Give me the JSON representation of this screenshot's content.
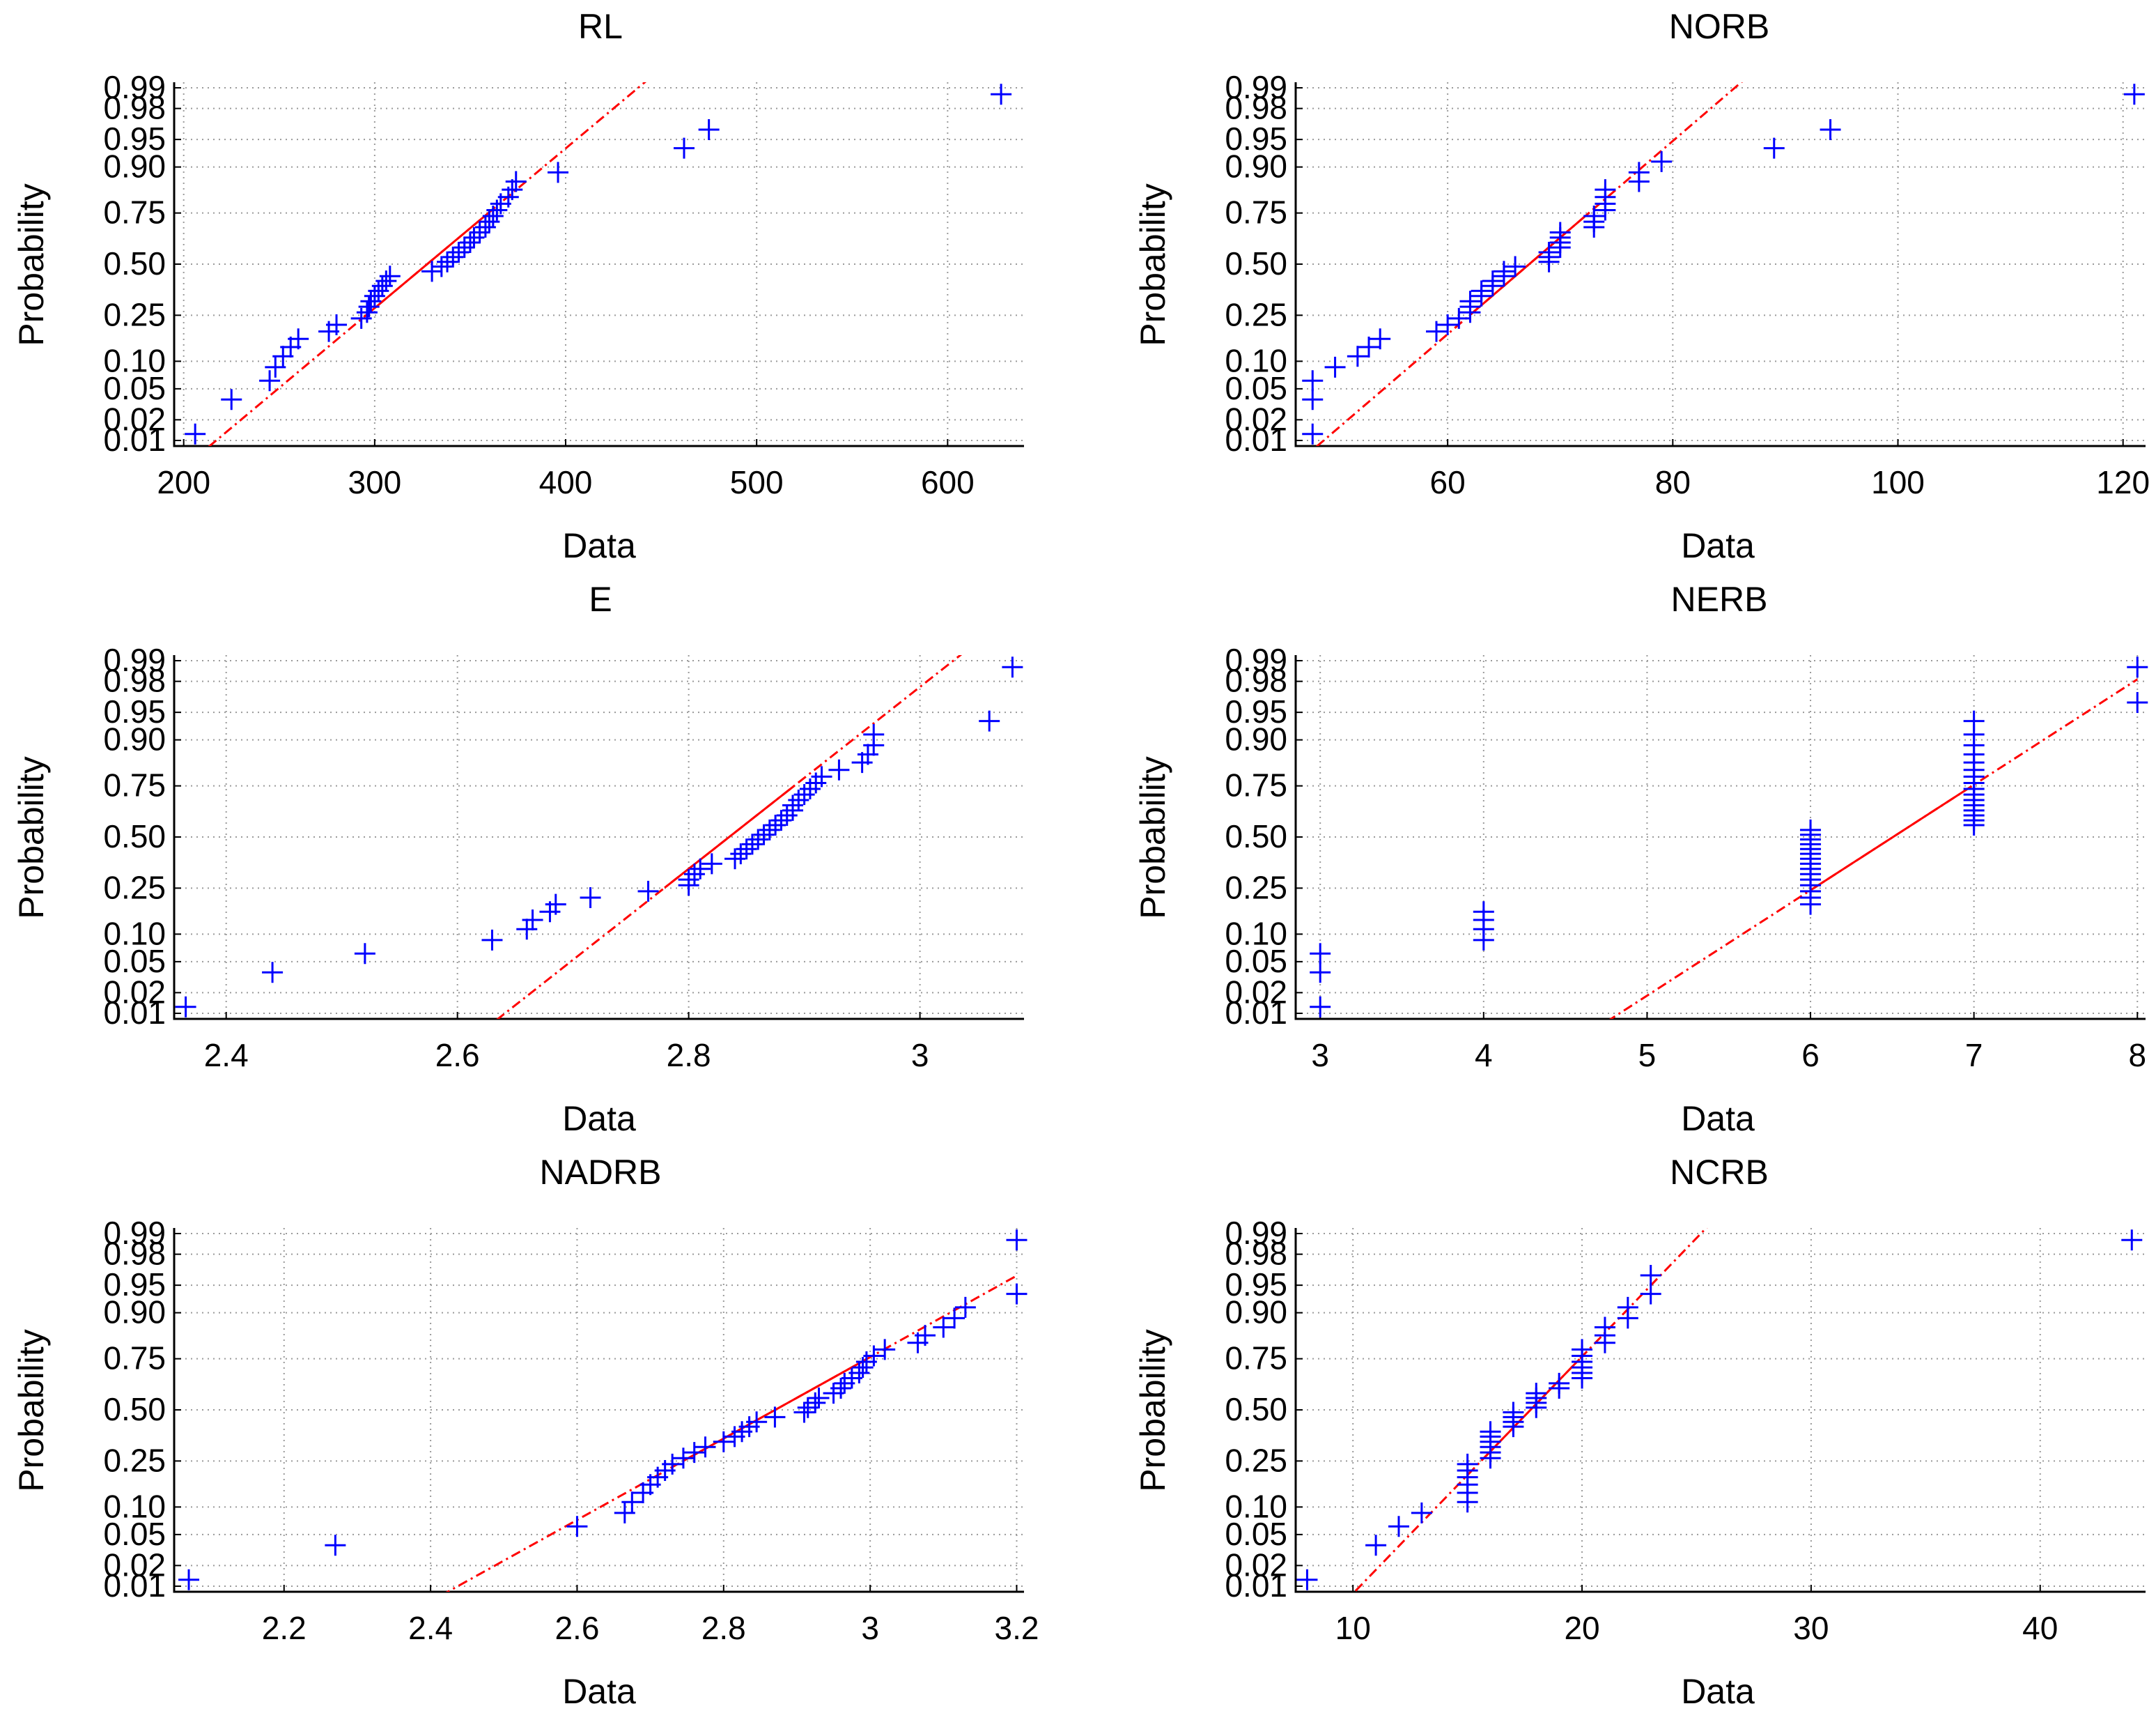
{
  "figure": {
    "colors": {
      "marker": "#0000ff",
      "fit": "#ff0000",
      "grid": "#9a9a9a",
      "axis": "#000000"
    }
  },
  "chart_data": [
    {
      "type": "scatter",
      "subtype": "normal-probability-plot",
      "title": "RL",
      "xlabel": "Data",
      "ylabel": "Probability",
      "xlim": [
        195,
        640
      ],
      "xticks": [
        200,
        300,
        400,
        500,
        600
      ],
      "yticks": [
        0.01,
        0.02,
        0.05,
        0.1,
        0.25,
        0.5,
        0.75,
        0.9,
        0.95,
        0.98,
        0.99
      ],
      "ytick_labels": [
        "0.01",
        "0.02",
        "0.05",
        "0.10",
        "0.25",
        "0.50",
        "0.75",
        "0.90",
        "0.95",
        "0.98",
        "0.99"
      ],
      "fit_line": {
        "x": [
          205,
          450
        ],
        "z": [
          -2.58,
          2.58
        ],
        "solid_z": [
          -0.67,
          0.67
        ]
      },
      "points": [
        [
          206,
          0.0125
        ],
        [
          225,
          0.037
        ],
        [
          245,
          0.062
        ],
        [
          248,
          0.087
        ],
        [
          252,
          0.112
        ],
        [
          256,
          0.137
        ],
        [
          260,
          0.162
        ],
        [
          276,
          0.187
        ],
        [
          280,
          0.212
        ],
        [
          293,
          0.237
        ],
        [
          296,
          0.262
        ],
        [
          297,
          0.287
        ],
        [
          298,
          0.312
        ],
        [
          300,
          0.337
        ],
        [
          302,
          0.362
        ],
        [
          304,
          0.387
        ],
        [
          306,
          0.412
        ],
        [
          308,
          0.437
        ],
        [
          330,
          0.462
        ],
        [
          335,
          0.487
        ],
        [
          338,
          0.512
        ],
        [
          341,
          0.537
        ],
        [
          344,
          0.562
        ],
        [
          347,
          0.587
        ],
        [
          350,
          0.612
        ],
        [
          352,
          0.637
        ],
        [
          355,
          0.662
        ],
        [
          358,
          0.687
        ],
        [
          360,
          0.712
        ],
        [
          362,
          0.737
        ],
        [
          364,
          0.762
        ],
        [
          366,
          0.787
        ],
        [
          370,
          0.812
        ],
        [
          372,
          0.837
        ],
        [
          374,
          0.862
        ],
        [
          396,
          0.887
        ],
        [
          462,
          0.937
        ],
        [
          475,
          0.962
        ],
        [
          628,
          0.9875
        ]
      ]
    },
    {
      "type": "scatter",
      "subtype": "normal-probability-plot",
      "title": "NORB",
      "xlabel": "Data",
      "ylabel": "Probability",
      "xlim": [
        46.5,
        122
      ],
      "xticks": [
        60,
        80,
        100,
        120
      ],
      "yticks": [
        0.01,
        0.02,
        0.05,
        0.1,
        0.25,
        0.5,
        0.75,
        0.9,
        0.95,
        0.98,
        0.99
      ],
      "ytick_labels": [
        "0.01",
        "0.02",
        "0.05",
        "0.10",
        "0.25",
        "0.50",
        "0.75",
        "0.90",
        "0.95",
        "0.98",
        "0.99"
      ],
      "fit_line": {
        "x": [
          47,
          87.5
        ],
        "z": [
          -2.58,
          2.58
        ],
        "solid_z": [
          -0.67,
          0.67
        ]
      },
      "points": [
        [
          48,
          0.0125
        ],
        [
          48,
          0.037
        ],
        [
          48,
          0.062
        ],
        [
          50,
          0.087
        ],
        [
          52,
          0.112
        ],
        [
          53,
          0.137
        ],
        [
          54,
          0.162
        ],
        [
          59,
          0.187
        ],
        [
          60,
          0.212
        ],
        [
          61,
          0.237
        ],
        [
          62,
          0.262
        ],
        [
          62,
          0.287
        ],
        [
          62,
          0.312
        ],
        [
          63,
          0.337
        ],
        [
          63,
          0.362
        ],
        [
          64,
          0.387
        ],
        [
          64,
          0.412
        ],
        [
          65,
          0.437
        ],
        [
          65,
          0.462
        ],
        [
          66,
          0.487
        ],
        [
          69,
          0.512
        ],
        [
          69,
          0.537
        ],
        [
          69,
          0.562
        ],
        [
          70,
          0.587
        ],
        [
          70,
          0.612
        ],
        [
          70,
          0.637
        ],
        [
          70,
          0.662
        ],
        [
          73,
          0.687
        ],
        [
          73,
          0.712
        ],
        [
          73,
          0.737
        ],
        [
          74,
          0.762
        ],
        [
          74,
          0.787
        ],
        [
          74,
          0.812
        ],
        [
          74,
          0.837
        ],
        [
          77,
          0.862
        ],
        [
          77,
          0.887
        ],
        [
          79,
          0.912
        ],
        [
          89,
          0.937
        ],
        [
          94,
          0.962
        ],
        [
          121,
          0.9875
        ]
      ]
    },
    {
      "type": "scatter",
      "subtype": "normal-probability-plot",
      "title": "E",
      "xlabel": "Data",
      "ylabel": "Probability",
      "xlim": [
        2.355,
        3.09
      ],
      "xticks": [
        2.4,
        2.6,
        2.8,
        3.0
      ],
      "xtick_labels": [
        "2.4",
        "2.6",
        "2.8",
        "3"
      ],
      "yticks": [
        0.01,
        0.02,
        0.05,
        0.1,
        0.25,
        0.5,
        0.75,
        0.9,
        0.95,
        0.98,
        0.99
      ],
      "ytick_labels": [
        "0.01",
        "0.02",
        "0.05",
        "0.10",
        "0.25",
        "0.50",
        "0.75",
        "0.90",
        "0.95",
        "0.98",
        "0.99"
      ],
      "fit_line": {
        "x": [
          2.62,
          3.05
        ],
        "z": [
          -2.58,
          2.58
        ],
        "solid_z": [
          -0.67,
          0.67
        ]
      },
      "points": [
        [
          2.365,
          0.0125
        ],
        [
          2.44,
          0.037
        ],
        [
          2.52,
          0.062
        ],
        [
          2.63,
          0.087
        ],
        [
          2.66,
          0.112
        ],
        [
          2.665,
          0.137
        ],
        [
          2.68,
          0.162
        ],
        [
          2.685,
          0.187
        ],
        [
          2.715,
          0.212
        ],
        [
          2.765,
          0.237
        ],
        [
          2.8,
          0.262
        ],
        [
          2.8,
          0.287
        ],
        [
          2.805,
          0.312
        ],
        [
          2.81,
          0.337
        ],
        [
          2.82,
          0.362
        ],
        [
          2.84,
          0.387
        ],
        [
          2.845,
          0.412
        ],
        [
          2.85,
          0.437
        ],
        [
          2.855,
          0.462
        ],
        [
          2.86,
          0.487
        ],
        [
          2.865,
          0.512
        ],
        [
          2.87,
          0.537
        ],
        [
          2.875,
          0.562
        ],
        [
          2.88,
          0.587
        ],
        [
          2.885,
          0.612
        ],
        [
          2.89,
          0.637
        ],
        [
          2.89,
          0.662
        ],
        [
          2.895,
          0.687
        ],
        [
          2.9,
          0.712
        ],
        [
          2.905,
          0.737
        ],
        [
          2.91,
          0.762
        ],
        [
          2.915,
          0.787
        ],
        [
          2.93,
          0.812
        ],
        [
          2.95,
          0.837
        ],
        [
          2.955,
          0.862
        ],
        [
          2.96,
          0.887
        ],
        [
          2.96,
          0.912
        ],
        [
          3.06,
          0.937
        ],
        [
          3.08,
          0.9875
        ]
      ]
    },
    {
      "type": "scatter",
      "subtype": "normal-probability-plot",
      "title": "NERB",
      "xlabel": "Data",
      "ylabel": "Probability",
      "xlim": [
        2.85,
        8.05
      ],
      "xticks": [
        3,
        4,
        5,
        6,
        7,
        8
      ],
      "yticks": [
        0.01,
        0.02,
        0.05,
        0.1,
        0.25,
        0.5,
        0.75,
        0.9,
        0.95,
        0.98,
        0.99
      ],
      "ytick_labels": [
        "0.01",
        "0.02",
        "0.05",
        "0.10",
        "0.25",
        "0.50",
        "0.75",
        "0.90",
        "0.95",
        "0.98",
        "0.99"
      ],
      "fit_line": {
        "x": [
          4.65,
          8.0
        ],
        "z": [
          -2.58,
          2.08
        ],
        "solid_z": [
          -0.67,
          0.67
        ]
      },
      "points": [
        [
          3,
          0.0125
        ],
        [
          3,
          0.037
        ],
        [
          3,
          0.062
        ],
        [
          4,
          0.087
        ],
        [
          4,
          0.112
        ],
        [
          4,
          0.137
        ],
        [
          4,
          0.162
        ],
        [
          6,
          0.187
        ],
        [
          6,
          0.212
        ],
        [
          6,
          0.237
        ],
        [
          6,
          0.262
        ],
        [
          6,
          0.287
        ],
        [
          6,
          0.312
        ],
        [
          6,
          0.337
        ],
        [
          6,
          0.362
        ],
        [
          6,
          0.387
        ],
        [
          6,
          0.412
        ],
        [
          6,
          0.437
        ],
        [
          6,
          0.462
        ],
        [
          6,
          0.487
        ],
        [
          6,
          0.512
        ],
        [
          6,
          0.537
        ],
        [
          7,
          0.562
        ],
        [
          7,
          0.587
        ],
        [
          7,
          0.612
        ],
        [
          7,
          0.637
        ],
        [
          7,
          0.662
        ],
        [
          7,
          0.687
        ],
        [
          7,
          0.712
        ],
        [
          7,
          0.737
        ],
        [
          7,
          0.762
        ],
        [
          7,
          0.787
        ],
        [
          7,
          0.812
        ],
        [
          7,
          0.837
        ],
        [
          7,
          0.862
        ],
        [
          7,
          0.887
        ],
        [
          7,
          0.912
        ],
        [
          7,
          0.937
        ],
        [
          8,
          0.962
        ],
        [
          8,
          0.9875
        ]
      ]
    },
    {
      "type": "scatter",
      "subtype": "normal-probability-plot",
      "title": "NADRB",
      "xlabel": "Data",
      "ylabel": "Probability",
      "xlim": [
        2.05,
        3.21
      ],
      "xticks": [
        2.2,
        2.4,
        2.6,
        2.8,
        3.0,
        3.2
      ],
      "xtick_labels": [
        "2.2",
        "2.4",
        "2.6",
        "2.8",
        "3",
        "3.2"
      ],
      "yticks": [
        0.01,
        0.02,
        0.05,
        0.1,
        0.25,
        0.5,
        0.75,
        0.9,
        0.95,
        0.98,
        0.99
      ],
      "ytick_labels": [
        "0.01",
        "0.02",
        "0.05",
        "0.10",
        "0.25",
        "0.50",
        "0.75",
        "0.90",
        "0.95",
        "0.98",
        "0.99"
      ],
      "fit_line": {
        "x": [
          2.39,
          3.2
        ],
        "z": [
          -2.58,
          1.77
        ],
        "solid_z": [
          -0.67,
          0.67
        ]
      },
      "points": [
        [
          2.07,
          0.0125
        ],
        [
          2.27,
          0.037
        ],
        [
          2.6,
          0.062
        ],
        [
          2.665,
          0.087
        ],
        [
          2.675,
          0.112
        ],
        [
          2.69,
          0.137
        ],
        [
          2.7,
          0.162
        ],
        [
          2.71,
          0.187
        ],
        [
          2.72,
          0.212
        ],
        [
          2.73,
          0.237
        ],
        [
          2.745,
          0.262
        ],
        [
          2.76,
          0.287
        ],
        [
          2.775,
          0.312
        ],
        [
          2.8,
          0.337
        ],
        [
          2.815,
          0.362
        ],
        [
          2.825,
          0.387
        ],
        [
          2.835,
          0.412
        ],
        [
          2.845,
          0.437
        ],
        [
          2.87,
          0.462
        ],
        [
          2.91,
          0.487
        ],
        [
          2.915,
          0.512
        ],
        [
          2.925,
          0.537
        ],
        [
          2.93,
          0.562
        ],
        [
          2.95,
          0.587
        ],
        [
          2.96,
          0.612
        ],
        [
          2.965,
          0.637
        ],
        [
          2.975,
          0.662
        ],
        [
          2.985,
          0.687
        ],
        [
          2.99,
          0.712
        ],
        [
          2.995,
          0.737
        ],
        [
          3.005,
          0.762
        ],
        [
          3.02,
          0.787
        ],
        [
          3.065,
          0.812
        ],
        [
          3.075,
          0.837
        ],
        [
          3.1,
          0.862
        ],
        [
          3.115,
          0.887
        ],
        [
          3.13,
          0.912
        ],
        [
          3.2,
          0.937
        ],
        [
          3.2,
          0.9875
        ]
      ]
    },
    {
      "type": "scatter",
      "subtype": "normal-probability-plot",
      "title": "NCRB",
      "xlabel": "Data",
      "ylabel": "Probability",
      "xlim": [
        7.5,
        44.6
      ],
      "xticks": [
        10,
        20,
        30,
        40
      ],
      "yticks": [
        0.01,
        0.02,
        0.05,
        0.1,
        0.25,
        0.5,
        0.75,
        0.9,
        0.95,
        0.98,
        0.99
      ],
      "ytick_labels": [
        "0.01",
        "0.02",
        "0.05",
        "0.10",
        "0.25",
        "0.50",
        "0.75",
        "0.90",
        "0.95",
        "0.98",
        "0.99"
      ],
      "fit_line": {
        "x": [
          9.5,
          26.0
        ],
        "z": [
          -2.58,
          2.58
        ],
        "solid_z": [
          -0.67,
          0.67
        ]
      },
      "points": [
        [
          8,
          0.0125
        ],
        [
          11,
          0.037
        ],
        [
          12,
          0.062
        ],
        [
          13,
          0.087
        ],
        [
          15,
          0.112
        ],
        [
          15,
          0.137
        ],
        [
          15,
          0.162
        ],
        [
          15,
          0.187
        ],
        [
          15,
          0.212
        ],
        [
          15,
          0.237
        ],
        [
          16,
          0.262
        ],
        [
          16,
          0.287
        ],
        [
          16,
          0.312
        ],
        [
          16,
          0.337
        ],
        [
          16,
          0.362
        ],
        [
          16,
          0.387
        ],
        [
          17,
          0.412
        ],
        [
          17,
          0.437
        ],
        [
          17,
          0.462
        ],
        [
          17,
          0.487
        ],
        [
          18,
          0.512
        ],
        [
          18,
          0.537
        ],
        [
          18,
          0.562
        ],
        [
          18,
          0.587
        ],
        [
          19,
          0.612
        ],
        [
          19,
          0.637
        ],
        [
          20,
          0.662
        ],
        [
          20,
          0.687
        ],
        [
          20,
          0.712
        ],
        [
          20,
          0.737
        ],
        [
          20,
          0.762
        ],
        [
          20,
          0.787
        ],
        [
          21,
          0.812
        ],
        [
          21,
          0.837
        ],
        [
          21,
          0.862
        ],
        [
          22,
          0.887
        ],
        [
          22,
          0.912
        ],
        [
          23,
          0.937
        ],
        [
          23,
          0.962
        ],
        [
          44,
          0.9875
        ]
      ]
    }
  ]
}
